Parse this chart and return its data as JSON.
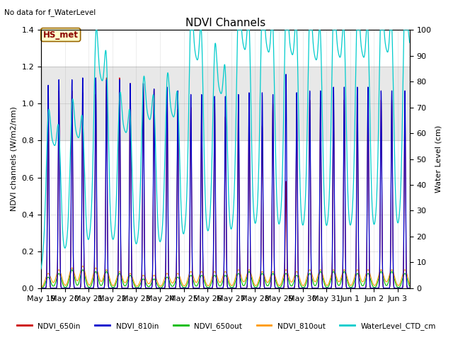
{
  "title": "NDVI Channels",
  "subtitle": "No data for f_WaterLevel",
  "ylabel_left": "NDVI channels (W/m2/nm)",
  "ylabel_right": "Water Level (cm)",
  "ylim_left": [
    0,
    1.4
  ],
  "ylim_right": [
    0,
    100
  ],
  "annotation": "HS_met",
  "legend_entries": [
    "NDVI_650in",
    "NDVI_810in",
    "NDVI_650out",
    "NDVI_810out",
    "WaterLevel_CTD_cm"
  ],
  "legend_colors": [
    "#cc0000",
    "#0000cc",
    "#00bb00",
    "#ff9900",
    "#00cccc"
  ],
  "background_band": [
    0.8,
    1.2
  ],
  "gray_band_alpha": 0.18,
  "xtick_labels": [
    "May 19",
    "May 20",
    "May 21",
    "May 22",
    "May 23",
    "May 24",
    "May 25",
    "May 26",
    "May 27",
    "May 28",
    "May 29",
    "May 30",
    "May 31",
    "Jun 1",
    "Jun 2",
    "Jun 3"
  ]
}
